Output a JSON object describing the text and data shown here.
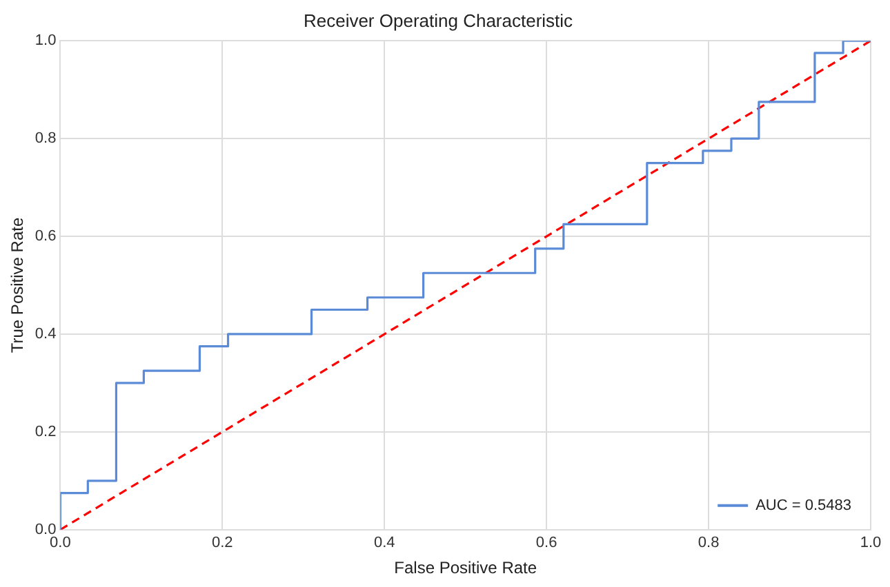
{
  "chart_data": {
    "type": "line",
    "title": "Receiver Operating Characteristic",
    "xlabel": "False Positive Rate",
    "ylabel": "True Positive Rate",
    "series": [
      {
        "name": "AUC = 0.5483",
        "color": "#5b8bd6",
        "line_style": "solid",
        "x": [
          0,
          0,
          0.034,
          0.034,
          0.069,
          0.069,
          0.103,
          0.103,
          0.172,
          0.172,
          0.207,
          0.207,
          0.31,
          0.31,
          0.379,
          0.379,
          0.448,
          0.448,
          0.586,
          0.586,
          0.621,
          0.621,
          0.724,
          0.724,
          0.793,
          0.793,
          0.828,
          0.828,
          0.862,
          0.862,
          0.931,
          0.931,
          0.966,
          0.966,
          1
        ],
        "values": [
          0,
          0.075,
          0.075,
          0.1,
          0.1,
          0.3,
          0.3,
          0.325,
          0.325,
          0.375,
          0.375,
          0.4,
          0.4,
          0.45,
          0.45,
          0.475,
          0.475,
          0.525,
          0.525,
          0.575,
          0.575,
          0.625,
          0.625,
          0.75,
          0.75,
          0.775,
          0.775,
          0.8,
          0.8,
          0.875,
          0.875,
          0.975,
          0.975,
          1,
          1
        ]
      },
      {
        "color": "#ff0000",
        "line_style": "dashed",
        "x": [
          0,
          1
        ],
        "values": [
          0,
          1
        ]
      }
    ],
    "xlim": [
      0,
      1
    ],
    "ylim": [
      0,
      1
    ],
    "xticks": [
      {
        "value": 0,
        "label": "0.0"
      },
      {
        "value": 0.2,
        "label": "0.2"
      },
      {
        "value": 0.4,
        "label": "0.4"
      },
      {
        "value": 0.6,
        "label": "0.6"
      },
      {
        "value": 0.8,
        "label": "0.8"
      },
      {
        "value": 1,
        "label": "1.0"
      }
    ],
    "yticks": [
      {
        "value": 0,
        "label": "0.0"
      },
      {
        "value": 0.2,
        "label": "0.2"
      },
      {
        "value": 0.4,
        "label": "0.4"
      },
      {
        "value": 0.6,
        "label": "0.6"
      },
      {
        "value": 0.8,
        "label": "0.8"
      },
      {
        "value": 1,
        "label": "1.0"
      }
    ],
    "grid": true,
    "legend": "bottom right",
    "marker": "none"
  }
}
